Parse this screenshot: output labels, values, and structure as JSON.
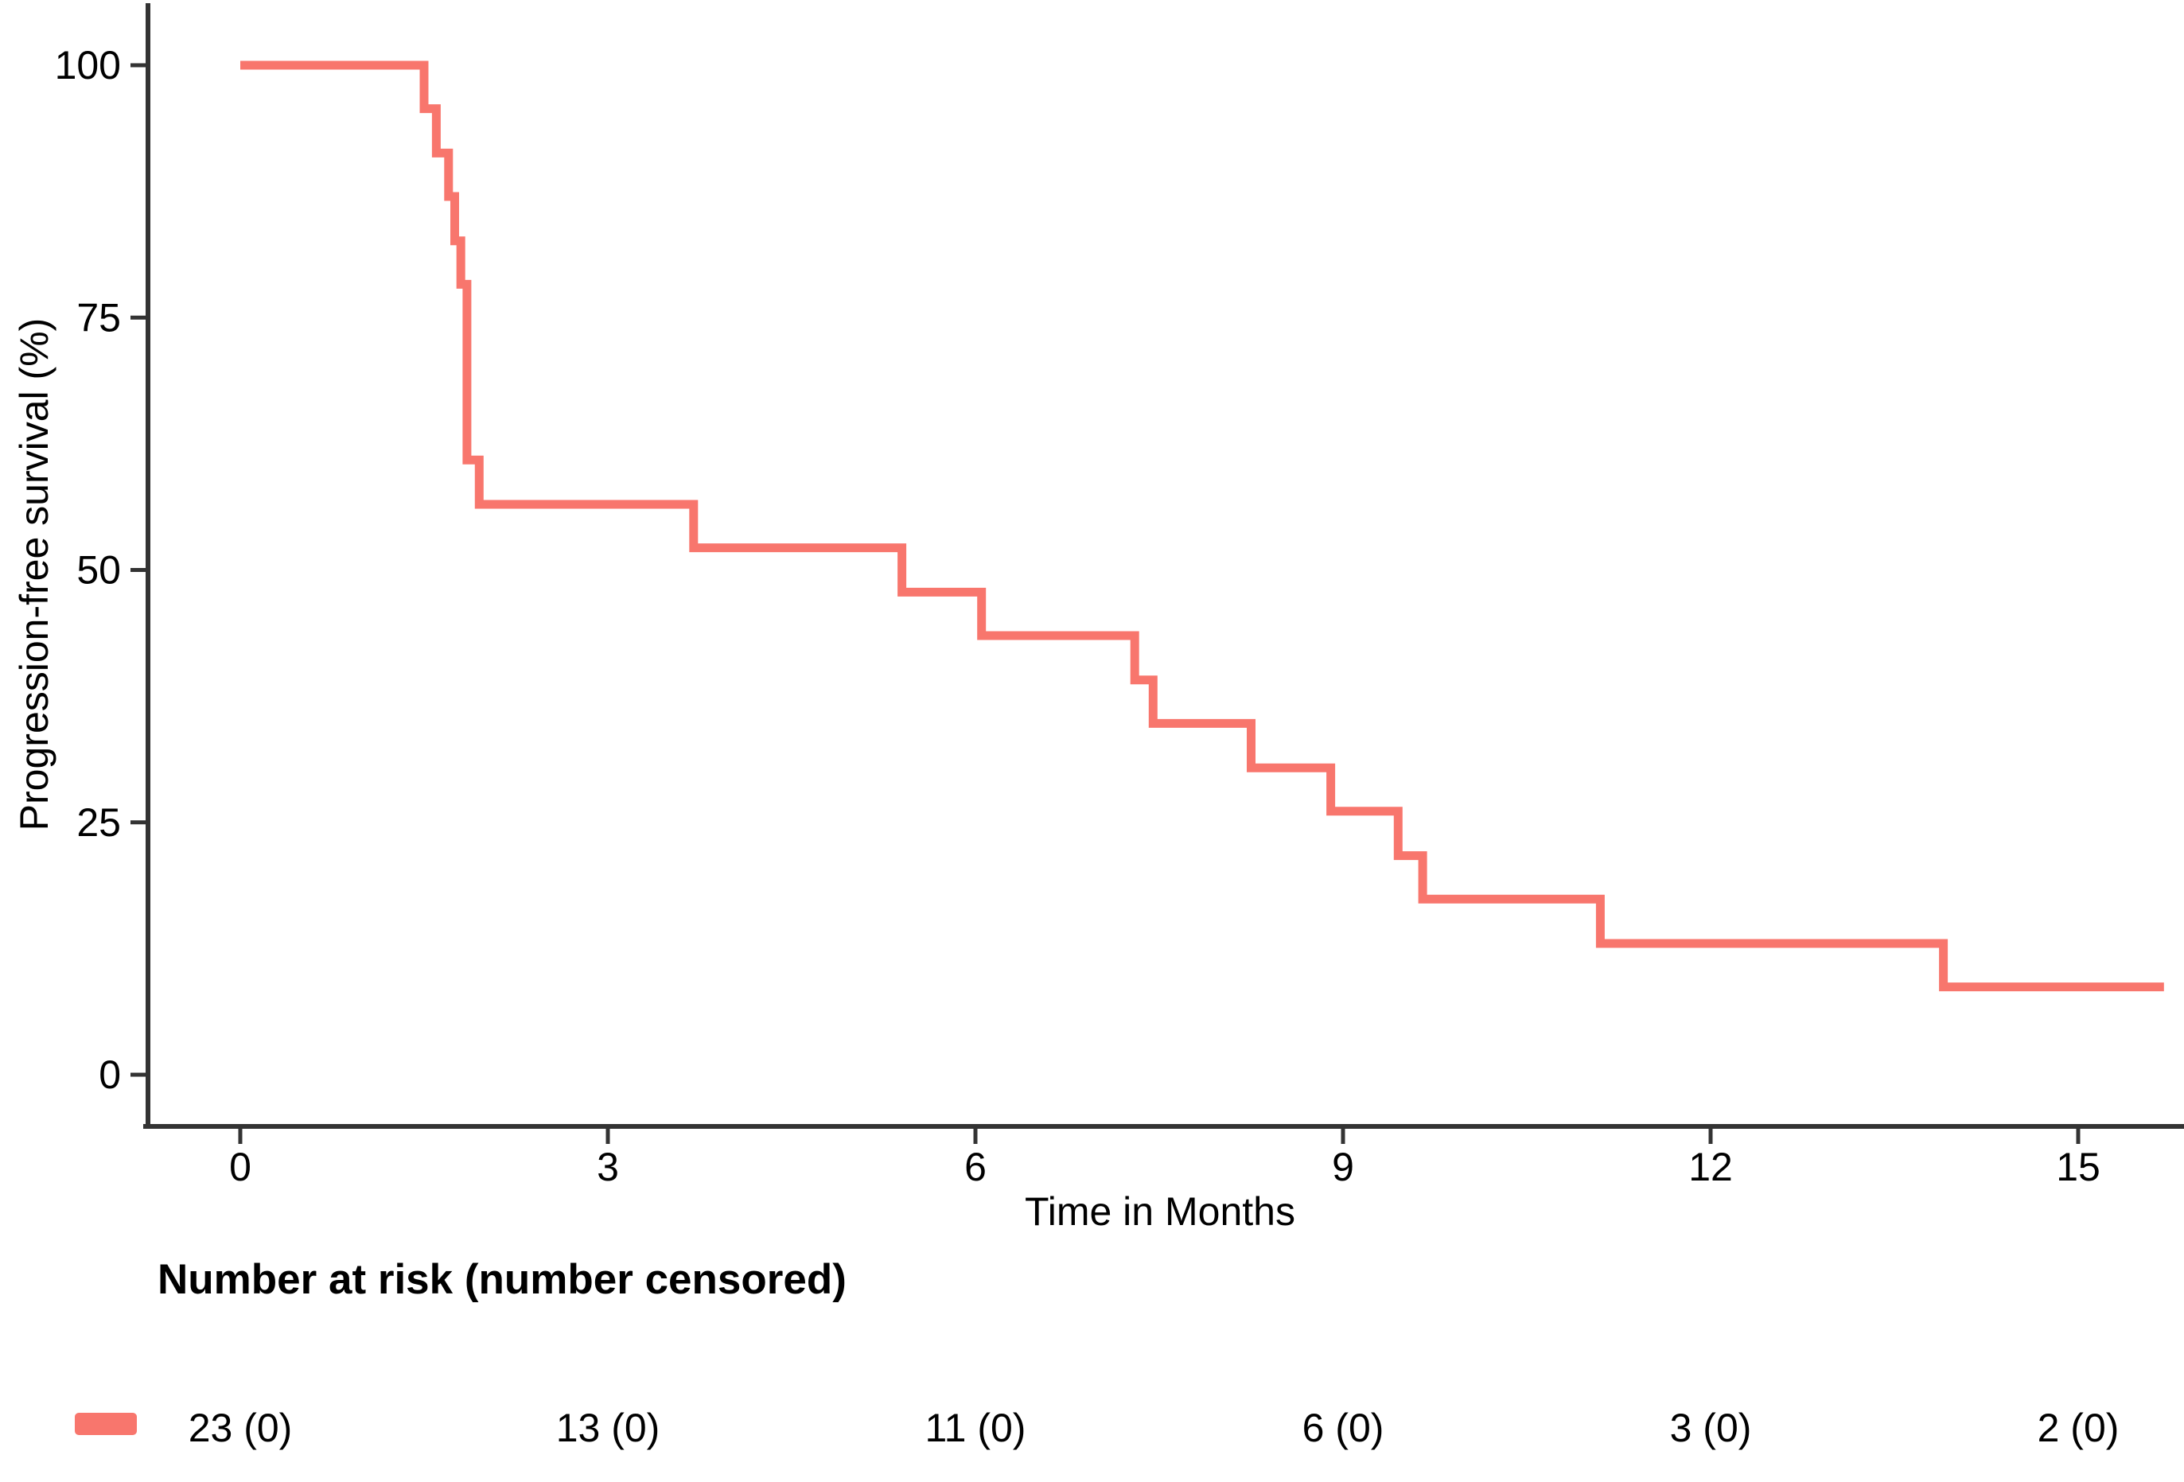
{
  "figure": {
    "background": "#FFFFFF",
    "axis_color": "#333333",
    "text_color": "#000000",
    "curve_color": "#F8766D"
  },
  "chart_data": {
    "type": "line",
    "subtype": "kaplan_meier_step",
    "title": "",
    "xlabel": "Time in Months",
    "ylabel": "Progression-free survival (%)",
    "x_ticks": [
      0,
      3,
      6,
      9,
      12,
      15
    ],
    "y_ticks": [
      0,
      25,
      50,
      75,
      100
    ],
    "xlim": [
      0,
      15.75
    ],
    "ylim": [
      0,
      100
    ],
    "grid": false,
    "legend_position": "bottom-left",
    "series": [
      {
        "color": "#F8766D",
        "steps": [
          [
            0,
            100
          ],
          [
            1.5,
            95.7
          ],
          [
            1.6,
            91.3
          ],
          [
            1.7,
            87.0
          ],
          [
            1.75,
            82.6
          ],
          [
            1.8,
            78.3
          ],
          [
            1.85,
            60.9
          ],
          [
            1.95,
            56.5
          ],
          [
            3.7,
            52.2
          ],
          [
            5.4,
            47.8
          ],
          [
            6.05,
            43.5
          ],
          [
            7.3,
            39.1
          ],
          [
            7.45,
            34.8
          ],
          [
            8.25,
            30.4
          ],
          [
            8.9,
            26.1
          ],
          [
            9.45,
            21.7
          ],
          [
            9.65,
            17.4
          ],
          [
            11.1,
            13.0
          ],
          [
            13.9,
            8.7
          ]
        ],
        "end_time": 15.7
      }
    ]
  },
  "risk_table": {
    "heading": "Number at risk (number censored)",
    "swatch_color": "#F8766D",
    "entries": [
      {
        "time": 0,
        "label": "23 (0)"
      },
      {
        "time": 3,
        "label": "13 (0)"
      },
      {
        "time": 6,
        "label": "11 (0)"
      },
      {
        "time": 9,
        "label": "6 (0)"
      },
      {
        "time": 12,
        "label": "3 (0)"
      },
      {
        "time": 15,
        "label": "2 (0)"
      }
    ]
  }
}
